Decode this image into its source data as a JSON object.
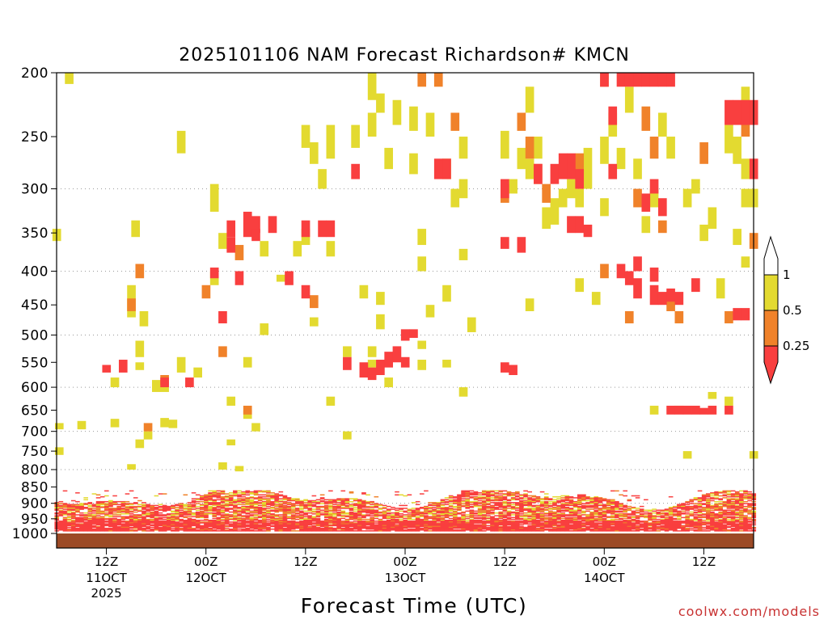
{
  "chart_data": {
    "type": "heatmap",
    "title": "2025101106 NAM Forecast Richardson# KMCN",
    "xlabel": "Forecast Time (UTC)",
    "ylabel": "",
    "watermark": "coolwx.com/models",
    "y_axis": {
      "scale": "log-pressure",
      "range": [
        1000,
        200
      ],
      "unit": "hPa",
      "ticks": [
        200,
        250,
        300,
        350,
        400,
        450,
        500,
        550,
        600,
        650,
        700,
        750,
        800,
        850,
        900,
        950,
        1000
      ],
      "dotted_gridlines": [
        300,
        400,
        500,
        600,
        700,
        800,
        900
      ]
    },
    "x_axis": {
      "unit": "hours from 2025-10-11 06Z",
      "range": [
        0,
        84
      ],
      "ticks": [
        {
          "hour": 6,
          "label": "12Z",
          "date": "11OCT",
          "year": "2025"
        },
        {
          "hour": 18,
          "label": "00Z",
          "date": "12OCT",
          "year": ""
        },
        {
          "hour": 30,
          "label": "12Z",
          "date": "",
          "year": ""
        },
        {
          "hour": 42,
          "label": "00Z",
          "date": "13OCT",
          "year": ""
        },
        {
          "hour": 54,
          "label": "12Z",
          "date": "",
          "year": ""
        },
        {
          "hour": 66,
          "label": "00Z",
          "date": "14OCT",
          "year": ""
        },
        {
          "hour": 78,
          "label": "12Z",
          "date": "",
          "year": ""
        }
      ]
    },
    "legend": {
      "position": "right",
      "labels": [
        "1",
        "0.5",
        "0.25"
      ],
      "levels": [
        {
          "category": "gt1",
          "range": "> 1",
          "color": "#ffffff"
        },
        {
          "category": "c1",
          "range": "0.5 - 1",
          "color": "#e3da30"
        },
        {
          "category": "c2",
          "range": "0.25 - 0.5",
          "color": "#f0822a"
        },
        {
          "category": "c3",
          "range": "< 0.25",
          "color": "#f93f3f"
        }
      ]
    },
    "surface_color": "#9c4a26",
    "series": [
      {
        "category": "c1",
        "cells": [
          [
            1.5,
            200,
            208
          ],
          [
            0,
            345,
            360
          ],
          [
            10,
            550,
            565
          ],
          [
            7,
            580,
            600
          ],
          [
            0.3,
            680,
            695
          ],
          [
            3,
            675,
            695
          ],
          [
            7,
            670,
            690
          ],
          [
            13,
            668,
            690
          ],
          [
            14,
            672,
            692
          ],
          [
            11,
            700,
            720
          ],
          [
            10,
            720,
            742
          ],
          [
            9,
            785,
            800
          ],
          [
            0.3,
            740,
            760
          ],
          [
            10,
            510,
            540
          ],
          [
            9,
            420,
            470
          ],
          [
            9.5,
            335,
            355
          ],
          [
            13,
            595,
            610
          ],
          [
            12,
            590,
            610
          ],
          [
            10.5,
            460,
            485
          ],
          [
            12,
            585,
            605
          ],
          [
            15,
            540,
            570
          ],
          [
            15,
            245,
            265
          ],
          [
            19,
            295,
            325
          ],
          [
            20,
            350,
            370
          ],
          [
            19,
            400,
            420
          ],
          [
            17,
            560,
            580
          ],
          [
            21,
            620,
            640
          ],
          [
            21,
            720,
            735
          ],
          [
            23,
            650,
            670
          ],
          [
            24,
            680,
            700
          ],
          [
            23,
            540,
            560
          ],
          [
            20,
            780,
            800
          ],
          [
            22,
            790,
            805
          ],
          [
            25,
            480,
            500
          ],
          [
            25,
            360,
            380
          ],
          [
            27,
            405,
            415
          ],
          [
            29,
            360,
            380
          ],
          [
            30,
            345,
            365
          ],
          [
            33,
            360,
            380
          ],
          [
            31,
            470,
            485
          ],
          [
            37,
            420,
            440
          ],
          [
            30,
            240,
            260
          ],
          [
            31,
            255,
            275
          ],
          [
            33,
            240,
            270
          ],
          [
            32,
            280,
            300
          ],
          [
            36,
            240,
            260
          ],
          [
            35,
            700,
            720
          ],
          [
            33,
            620,
            640
          ],
          [
            35,
            520,
            540
          ],
          [
            38,
            200,
            220
          ],
          [
            38,
            230,
            250
          ],
          [
            39,
            215,
            230
          ],
          [
            41,
            220,
            240
          ],
          [
            40,
            260,
            280
          ],
          [
            43,
            225,
            245
          ],
          [
            45,
            230,
            250
          ],
          [
            43,
            265,
            285
          ],
          [
            44,
            345,
            365
          ],
          [
            39,
            430,
            450
          ],
          [
            39,
            465,
            490
          ],
          [
            38,
            545,
            560
          ],
          [
            38,
            520,
            540
          ],
          [
            44,
            545,
            565
          ],
          [
            44,
            510,
            525
          ],
          [
            40,
            580,
            600
          ],
          [
            45,
            450,
            470
          ],
          [
            44,
            380,
            400
          ],
          [
            47,
            545,
            560
          ],
          [
            48,
            300,
            320
          ],
          [
            47,
            270,
            290
          ],
          [
            49,
            250,
            270
          ],
          [
            49,
            290,
            310
          ],
          [
            49,
            370,
            385
          ],
          [
            47,
            420,
            445
          ],
          [
            49,
            600,
            620
          ],
          [
            50,
            470,
            495
          ],
          [
            54,
            245,
            270
          ],
          [
            55,
            290,
            305
          ],
          [
            57,
            270,
            290
          ],
          [
            57,
            210,
            230
          ],
          [
            58,
            250,
            270
          ],
          [
            57,
            440,
            460
          ],
          [
            56,
            260,
            280
          ],
          [
            59,
            320,
            345
          ],
          [
            60,
            310,
            340
          ],
          [
            61,
            300,
            320
          ],
          [
            62,
            290,
            310
          ],
          [
            63,
            300,
            320
          ],
          [
            64,
            260,
            300
          ],
          [
            63,
            410,
            430
          ],
          [
            65,
            430,
            450
          ],
          [
            66,
            310,
            330
          ],
          [
            66,
            250,
            275
          ],
          [
            67,
            230,
            250
          ],
          [
            68,
            260,
            280
          ],
          [
            69,
            210,
            230
          ],
          [
            70,
            270,
            290
          ],
          [
            71,
            330,
            350
          ],
          [
            72,
            300,
            320
          ],
          [
            73,
            230,
            250
          ],
          [
            72,
            640,
            660
          ],
          [
            74,
            250,
            270
          ],
          [
            75,
            640,
            655
          ],
          [
            76,
            750,
            770
          ],
          [
            76,
            300,
            320
          ],
          [
            77,
            290,
            305
          ],
          [
            78,
            340,
            360
          ],
          [
            79,
            320,
            345
          ],
          [
            80,
            410,
            440
          ],
          [
            81,
            240,
            265
          ],
          [
            82,
            250,
            275
          ],
          [
            82,
            345,
            365
          ],
          [
            83,
            210,
            225
          ],
          [
            83,
            300,
            320
          ],
          [
            84,
            300,
            320
          ],
          [
            83,
            270,
            290
          ],
          [
            83,
            380,
            395
          ],
          [
            84,
            750,
            770
          ],
          [
            81,
            620,
            640
          ],
          [
            79,
            610,
            625
          ]
        ]
      },
      {
        "category": "c2",
        "cells": [
          [
            10,
            390,
            410
          ],
          [
            9,
            440,
            460
          ],
          [
            11,
            680,
            700
          ],
          [
            13,
            575,
            595
          ],
          [
            18,
            420,
            440
          ],
          [
            20,
            520,
            540
          ],
          [
            22,
            365,
            385
          ],
          [
            23,
            640,
            660
          ],
          [
            31,
            435,
            455
          ],
          [
            44,
            200,
            210
          ],
          [
            46,
            200,
            210
          ],
          [
            48,
            230,
            245
          ],
          [
            54,
            295,
            315
          ],
          [
            56,
            230,
            245
          ],
          [
            57,
            250,
            270
          ],
          [
            58,
            275,
            295
          ],
          [
            59,
            295,
            315
          ],
          [
            63,
            265,
            285
          ],
          [
            66,
            200,
            210
          ],
          [
            66,
            390,
            410
          ],
          [
            69,
            460,
            480
          ],
          [
            70,
            300,
            320
          ],
          [
            71,
            225,
            245
          ],
          [
            72,
            250,
            270
          ],
          [
            73,
            335,
            350
          ],
          [
            74,
            440,
            460
          ],
          [
            75,
            460,
            480
          ],
          [
            78,
            255,
            275
          ],
          [
            81,
            460,
            480
          ],
          [
            83,
            230,
            250
          ],
          [
            84,
            350,
            370
          ]
        ]
      },
      {
        "category": "c3",
        "cells": [
          [
            6,
            555,
            570
          ],
          [
            8,
            545,
            570
          ],
          [
            13,
            580,
            600
          ],
          [
            16,
            580,
            600
          ],
          [
            19,
            395,
            410
          ],
          [
            20,
            460,
            480
          ],
          [
            21,
            335,
            355
          ],
          [
            21,
            355,
            375
          ],
          [
            22,
            400,
            420
          ],
          [
            24,
            330,
            350
          ],
          [
            23,
            325,
            355
          ],
          [
            24,
            345,
            360
          ],
          [
            26,
            330,
            350
          ],
          [
            28,
            400,
            420
          ],
          [
            30,
            420,
            440
          ],
          [
            30,
            335,
            355
          ],
          [
            32,
            335,
            355
          ],
          [
            33,
            335,
            355
          ],
          [
            35,
            540,
            565
          ],
          [
            37,
            550,
            580
          ],
          [
            38,
            560,
            585
          ],
          [
            39,
            545,
            575
          ],
          [
            40,
            530,
            560
          ],
          [
            41,
            520,
            550
          ],
          [
            42,
            490,
            510
          ],
          [
            43,
            490,
            505
          ],
          [
            42,
            540,
            560
          ],
          [
            36,
            275,
            290
          ],
          [
            46,
            270,
            290
          ],
          [
            47,
            270,
            290
          ],
          [
            54,
            550,
            570
          ],
          [
            55,
            555,
            575
          ],
          [
            54,
            290,
            310
          ],
          [
            54,
            355,
            370
          ],
          [
            56,
            355,
            375
          ],
          [
            58,
            275,
            295
          ],
          [
            60,
            275,
            295
          ],
          [
            61,
            265,
            290
          ],
          [
            62,
            265,
            290
          ],
          [
            63,
            280,
            300
          ],
          [
            62,
            330,
            350
          ],
          [
            63,
            330,
            350
          ],
          [
            64,
            340,
            355
          ],
          [
            67,
            275,
            290
          ],
          [
            66,
            200,
            210
          ],
          [
            68,
            200,
            210
          ],
          [
            69,
            200,
            210
          ],
          [
            70,
            200,
            210
          ],
          [
            71,
            200,
            210
          ],
          [
            72,
            200,
            210
          ],
          [
            73,
            200,
            210
          ],
          [
            74,
            200,
            210
          ],
          [
            68,
            390,
            410
          ],
          [
            69,
            400,
            420
          ],
          [
            70,
            410,
            440
          ],
          [
            72,
            420,
            450
          ],
          [
            73,
            430,
            450
          ],
          [
            74,
            425,
            445
          ],
          [
            75,
            430,
            450
          ],
          [
            72,
            395,
            415
          ],
          [
            71,
            305,
            325
          ],
          [
            72,
            290,
            305
          ],
          [
            73,
            310,
            330
          ],
          [
            77,
            410,
            430
          ],
          [
            81,
            220,
            240
          ],
          [
            82,
            220,
            240
          ],
          [
            83,
            220,
            240
          ],
          [
            84,
            220,
            240
          ],
          [
            82,
            455,
            475
          ],
          [
            83,
            455,
            475
          ],
          [
            81,
            640,
            660
          ],
          [
            84,
            270,
            290
          ],
          [
            74,
            640,
            660
          ],
          [
            76,
            640,
            660
          ],
          [
            77,
            640,
            660
          ],
          [
            78,
            645,
            660
          ],
          [
            79,
            640,
            660
          ],
          [
            75,
            640,
            660
          ],
          [
            67,
            225,
            240
          ],
          [
            70,
            380,
            400
          ]
        ]
      }
    ],
    "boundary_layer": {
      "note": "dense mixed cells between ~860 and 990 hPa across all forecast hours",
      "range": [
        860,
        990
      ]
    }
  }
}
